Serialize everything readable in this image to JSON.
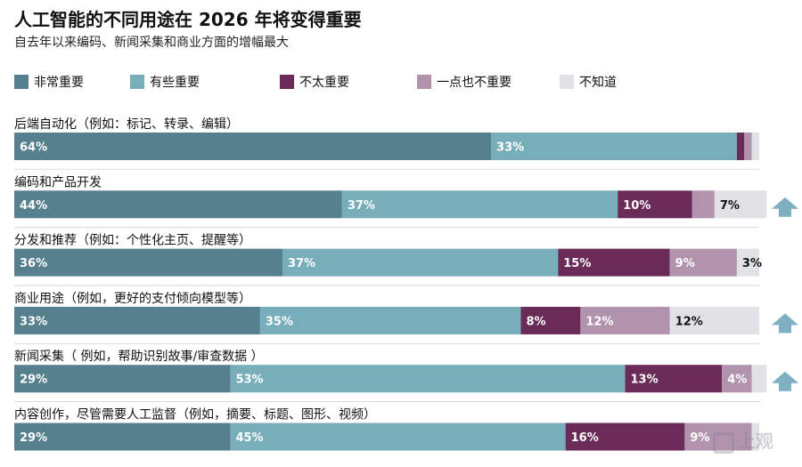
{
  "chart_data": {
    "type": "bar",
    "orientation": "horizontal-stacked",
    "title": "人工智能的不同用途在 2026 年将变得重要",
    "subtitle": "自去年以来编码、新闻采集和商业方面的增幅最大",
    "xlim": [
      0,
      100
    ],
    "series": [
      {
        "name": "非常重要",
        "color": "#56808e",
        "values": [
          64,
          44,
          36,
          33,
          29,
          29
        ]
      },
      {
        "name": "有些重要",
        "color": "#78aeba",
        "values": [
          33,
          37,
          37,
          35,
          53,
          45
        ]
      },
      {
        "name": "不太重要",
        "color": "#6a2b58",
        "values": [
          1,
          10,
          15,
          8,
          13,
          16
        ]
      },
      {
        "name": "一点也不重要",
        "color": "#b293ad",
        "values": [
          1,
          3,
          9,
          12,
          4,
          9
        ]
      },
      {
        "name": "不知道",
        "color": "#e2e2e6",
        "values": [
          1,
          7,
          3,
          12,
          2,
          1
        ]
      }
    ],
    "categories": [
      "后端自动化（例如：标记、转录、编辑）",
      "编码和产品开发",
      "分发和推荐（例如：个性化主页、提醒等）",
      "商业用途（例如，更好的支付倾向模型等）",
      "新闻采集（ 例如，帮助识别故事/审查数据 ）",
      "内容创作，尽管需要人工监督（例如，摘要、标题、图形、视频）"
    ],
    "labels": [
      [
        "64%",
        "33%",
        "",
        "",
        ""
      ],
      [
        "44%",
        "37%",
        "10%",
        "",
        "7%"
      ],
      [
        "36%",
        "37%",
        "15%",
        "9%",
        "3%"
      ],
      [
        "33%",
        "35%",
        "8%",
        "12%",
        "12%"
      ],
      [
        "29%",
        "53%",
        "13%",
        "4%",
        ""
      ],
      [
        "29%",
        "45%",
        "16%",
        "9%",
        ""
      ]
    ],
    "increase_marker": [
      false,
      true,
      false,
      true,
      true,
      false
    ]
  },
  "watermark": "上观"
}
